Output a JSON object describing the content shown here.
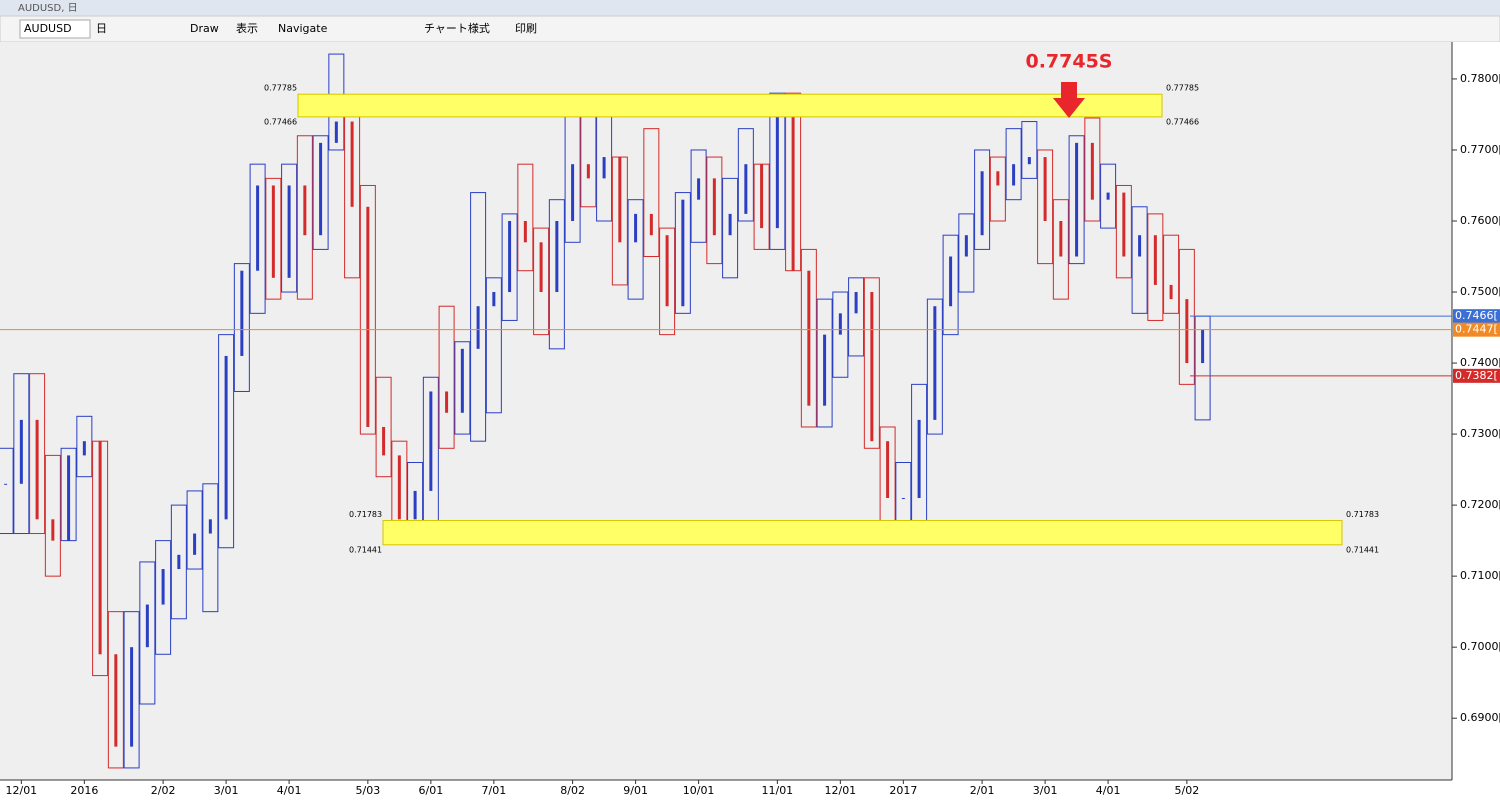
{
  "window": {
    "title": "AUDUSD, 日"
  },
  "toolbar": {
    "symbol": "AUDUSD",
    "period": "日",
    "items": [
      "Draw",
      "表示",
      "Navigate",
      "チャート様式",
      "印刷"
    ]
  },
  "chart_data": {
    "type": "candlestick",
    "categories": [
      null,
      "12/01",
      null,
      null,
      null,
      "2016",
      null,
      null,
      null,
      null,
      "2/02",
      null,
      null,
      null,
      "3/01",
      null,
      null,
      null,
      "4/01",
      null,
      null,
      null,
      null,
      "5/03",
      null,
      null,
      null,
      "6/01",
      null,
      null,
      null,
      "7/01",
      null,
      null,
      null,
      null,
      "8/02",
      null,
      null,
      null,
      "9/01",
      null,
      null,
      null,
      "10/01",
      null,
      null,
      null,
      null,
      "11/01",
      null,
      null,
      null,
      "12/01",
      null,
      null,
      null,
      "2017",
      null,
      null,
      null,
      null,
      "2/01",
      null,
      null,
      null,
      "3/01",
      null,
      null,
      null,
      "4/01",
      null,
      null,
      null,
      null,
      "5/02",
      null
    ],
    "open": [
      0.723,
      0.723,
      0.732,
      0.718,
      0.715,
      0.727,
      0.729,
      0.699,
      0.686,
      0.7,
      0.706,
      0.711,
      0.713,
      0.716,
      0.718,
      0.741,
      0.753,
      0.765,
      0.752,
      0.765,
      0.758,
      0.771,
      0.774,
      0.762,
      0.731,
      0.727,
      0.718,
      0.722,
      0.736,
      0.733,
      0.742,
      0.748,
      0.75,
      0.76,
      0.757,
      0.75,
      0.76,
      0.768,
      0.766,
      0.769,
      0.757,
      0.761,
      0.758,
      0.748,
      0.763,
      0.766,
      0.758,
      0.761,
      0.768,
      0.759,
      0.775,
      0.753,
      0.734,
      0.744,
      0.747,
      0.75,
      0.729,
      0.721,
      0.721,
      0.732,
      0.748,
      0.755,
      0.758,
      0.767,
      0.765,
      0.768,
      0.769,
      0.76,
      0.755,
      0.771,
      0.763,
      0.764,
      0.755,
      0.758,
      0.751,
      0.749,
      0.74
    ],
    "high": [
      0.728,
      0.7385,
      0.7385,
      0.727,
      0.728,
      0.7325,
      0.729,
      0.705,
      0.705,
      0.712,
      0.715,
      0.72,
      0.722,
      0.723,
      0.744,
      0.754,
      0.768,
      0.766,
      0.768,
      0.772,
      0.772,
      0.7835,
      0.776,
      0.765,
      0.738,
      0.729,
      0.726,
      0.738,
      0.748,
      0.743,
      0.764,
      0.752,
      0.761,
      0.768,
      0.759,
      0.763,
      0.776,
      0.775,
      0.775,
      0.769,
      0.763,
      0.773,
      0.759,
      0.764,
      0.77,
      0.769,
      0.766,
      0.773,
      0.768,
      0.778,
      0.778,
      0.756,
      0.749,
      0.75,
      0.752,
      0.752,
      0.731,
      0.726,
      0.737,
      0.749,
      0.758,
      0.761,
      0.77,
      0.769,
      0.773,
      0.774,
      0.77,
      0.763,
      0.772,
      0.7745,
      0.768,
      0.765,
      0.762,
      0.761,
      0.758,
      0.756,
      0.7466
    ],
    "low": [
      0.716,
      0.716,
      0.716,
      0.71,
      0.715,
      0.724,
      0.696,
      0.683,
      0.683,
      0.692,
      0.699,
      0.704,
      0.711,
      0.705,
      0.714,
      0.736,
      0.747,
      0.749,
      0.75,
      0.749,
      0.756,
      0.77,
      0.752,
      0.73,
      0.724,
      0.715,
      0.7145,
      0.715,
      0.728,
      0.73,
      0.729,
      0.733,
      0.746,
      0.753,
      0.744,
      0.742,
      0.757,
      0.762,
      0.76,
      0.751,
      0.749,
      0.755,
      0.744,
      0.747,
      0.757,
      0.754,
      0.752,
      0.76,
      0.756,
      0.756,
      0.753,
      0.731,
      0.731,
      0.738,
      0.741,
      0.728,
      0.716,
      0.716,
      0.716,
      0.73,
      0.744,
      0.75,
      0.756,
      0.76,
      0.763,
      0.766,
      0.754,
      0.749,
      0.754,
      0.76,
      0.759,
      0.752,
      0.747,
      0.746,
      0.747,
      0.737,
      0.732
    ],
    "close": [
      0.723,
      0.732,
      0.718,
      0.715,
      0.727,
      0.729,
      0.699,
      0.686,
      0.7,
      0.706,
      0.711,
      0.713,
      0.716,
      0.718,
      0.741,
      0.753,
      0.765,
      0.752,
      0.765,
      0.758,
      0.771,
      0.774,
      0.762,
      0.731,
      0.727,
      0.718,
      0.722,
      0.736,
      0.733,
      0.742,
      0.748,
      0.75,
      0.76,
      0.757,
      0.75,
      0.76,
      0.768,
      0.766,
      0.769,
      0.757,
      0.761,
      0.758,
      0.748,
      0.763,
      0.766,
      0.758,
      0.761,
      0.768,
      0.759,
      0.775,
      0.753,
      0.734,
      0.744,
      0.747,
      0.75,
      0.729,
      0.721,
      0.721,
      0.732,
      0.748,
      0.755,
      0.758,
      0.767,
      0.765,
      0.768,
      0.769,
      0.76,
      0.755,
      0.771,
      0.763,
      0.764,
      0.755,
      0.758,
      0.751,
      0.749,
      0.74,
      0.7447
    ],
    "up_color": "#2a3fc4",
    "down_color": "#d42a2a",
    "ylim": [
      0.6813,
      0.7852
    ],
    "yticks": [
      {
        "value": 0.69,
        "label": "0.6900[0"
      },
      {
        "value": 0.7,
        "label": "0.7000[0"
      },
      {
        "value": 0.71,
        "label": "0.7100[0"
      },
      {
        "value": 0.72,
        "label": "0.7200[0"
      },
      {
        "value": 0.73,
        "label": "0.7300[0"
      },
      {
        "value": 0.74,
        "label": "0.7400[0"
      },
      {
        "value": 0.75,
        "label": "0.7500[0"
      },
      {
        "value": 0.76,
        "label": "0.7600[0"
      },
      {
        "value": 0.77,
        "label": "0.7700[0"
      },
      {
        "value": 0.78,
        "label": "0.7800[0"
      }
    ],
    "zones": [
      {
        "high": 0.77785,
        "low": 0.77466,
        "color": "#ffff66"
      },
      {
        "high": 0.71783,
        "low": 0.71441,
        "color": "#ffff66"
      }
    ],
    "price_lines": [
      {
        "value": 0.7466,
        "label": "0.7466[",
        "color": "#3a6fd8"
      },
      {
        "value": 0.7447,
        "label": "0.7447[",
        "color": "#f08a24"
      },
      {
        "value": 0.7382,
        "label": "0.7382[",
        "color": "#d42a2a"
      }
    ],
    "annotation": {
      "text": "0.7745S",
      "value": 0.7745,
      "color": "#e8262b"
    }
  }
}
